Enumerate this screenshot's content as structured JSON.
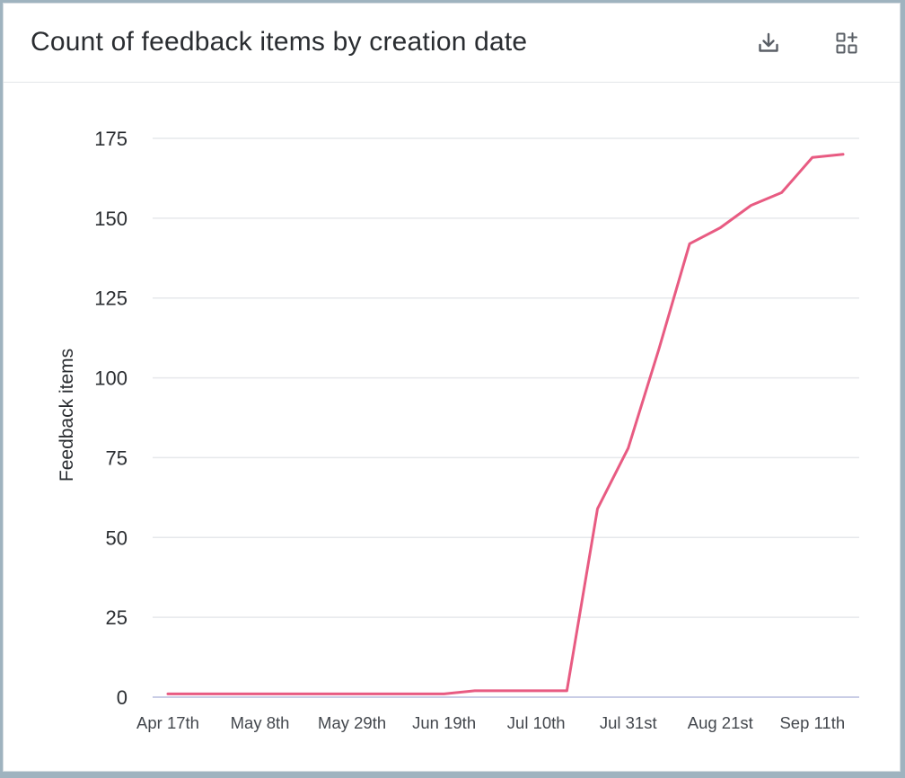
{
  "header": {
    "title": "Count of feedback items by creation date",
    "download_icon": "download-icon",
    "add_widget_icon": "add-widget-icon"
  },
  "colors": {
    "line": "#e85b82",
    "grid": "#e6e8eb",
    "baseline": "#c9cde6",
    "text": "#2a2d31",
    "tick_text": "#43474d"
  },
  "chart_data": {
    "type": "line",
    "title": "Count of feedback items by creation date",
    "xlabel": "",
    "ylabel": "Feedback items",
    "ylim": [
      0,
      175
    ],
    "yticks": [
      0,
      25,
      50,
      75,
      100,
      125,
      150,
      175
    ],
    "x_tick_labels": [
      "Apr 17th",
      "May 8th",
      "May 29th",
      "Jun 19th",
      "Jul 10th",
      "Jul 31st",
      "Aug 21st",
      "Sep 11th"
    ],
    "x_tick_dates": [
      "2024-04-17",
      "2024-05-08",
      "2024-05-29",
      "2024-06-19",
      "2024-07-10",
      "2024-07-31",
      "2024-08-21",
      "2024-09-11"
    ],
    "grid": true,
    "legend": "none",
    "series": [
      {
        "points": [
          {
            "x": "2024-04-17",
            "y": 1
          },
          {
            "x": "2024-04-24",
            "y": 1
          },
          {
            "x": "2024-05-01",
            "y": 1
          },
          {
            "x": "2024-05-08",
            "y": 1
          },
          {
            "x": "2024-05-15",
            "y": 1
          },
          {
            "x": "2024-05-22",
            "y": 1
          },
          {
            "x": "2024-05-29",
            "y": 1
          },
          {
            "x": "2024-06-05",
            "y": 1
          },
          {
            "x": "2024-06-12",
            "y": 1
          },
          {
            "x": "2024-06-19",
            "y": 1
          },
          {
            "x": "2024-06-26",
            "y": 2
          },
          {
            "x": "2024-07-03",
            "y": 2
          },
          {
            "x": "2024-07-10",
            "y": 2
          },
          {
            "x": "2024-07-17",
            "y": 2
          },
          {
            "x": "2024-07-24",
            "y": 59
          },
          {
            "x": "2024-07-31",
            "y": 78
          },
          {
            "x": "2024-08-07",
            "y": 109
          },
          {
            "x": "2024-08-14",
            "y": 142
          },
          {
            "x": "2024-08-21",
            "y": 147
          },
          {
            "x": "2024-08-28",
            "y": 154
          },
          {
            "x": "2024-09-04",
            "y": 158
          },
          {
            "x": "2024-09-11",
            "y": 169
          },
          {
            "x": "2024-09-18",
            "y": 170
          }
        ]
      }
    ]
  }
}
